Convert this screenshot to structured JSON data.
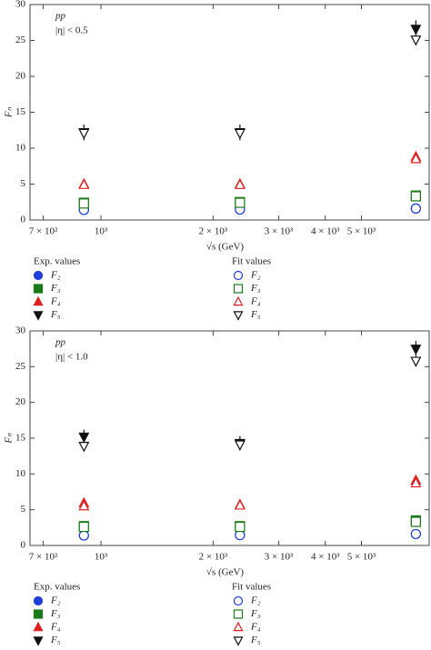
{
  "chart_data": [
    {
      "type": "scatter",
      "annotations": [
        "pp",
        "|η| < 0.5"
      ],
      "x_label": "√s (GeV)",
      "y_label": "Fₙ",
      "x": [
        900,
        2360,
        7000
      ],
      "log_x": true,
      "xlim": [
        645,
        7600
      ],
      "xticks": [
        {
          "value": 700,
          "label": "7 × 10²"
        },
        {
          "value": 1000,
          "label": "10³"
        },
        {
          "value": 2000,
          "label": "2 × 10³"
        },
        {
          "value": 3000,
          "label": "3 × 10³"
        },
        {
          "value": 4000,
          "label": "4 × 10³"
        },
        {
          "value": 5000,
          "label": "5 × 10³"
        }
      ],
      "ylim": [
        0,
        30
      ],
      "yticks": [
        0,
        5,
        10,
        15,
        20,
        25,
        30
      ],
      "legend_titles": [
        "Exp. values",
        "Fit values"
      ],
      "series": [
        {
          "name": "F₂",
          "color": "#1f3fd8",
          "marker": "circle",
          "filled": true,
          "values": [
            1.4,
            1.45,
            1.6
          ]
        },
        {
          "name": "F₃",
          "color": "#1a7a1a",
          "marker": "square",
          "filled": true,
          "values": [
            2.4,
            2.5,
            3.4
          ]
        },
        {
          "name": "F₄",
          "color": "#e02020",
          "marker": "triangle-up",
          "filled": true,
          "values": [
            5.0,
            5.0,
            8.8
          ]
        },
        {
          "name": "F₅",
          "color": "#111111",
          "marker": "triangle-down",
          "filled": true,
          "values": [
            12.2,
            12.2,
            26.6
          ],
          "errors": [
            1.1,
            1.1,
            1.2
          ]
        },
        {
          "name": "F₂",
          "color": "#1f3fd8",
          "marker": "circle",
          "filled": false,
          "values": [
            1.4,
            1.45,
            1.6
          ]
        },
        {
          "name": "F₃",
          "color": "#1a7a1a",
          "marker": "square",
          "filled": false,
          "values": [
            2.3,
            2.4,
            3.3
          ]
        },
        {
          "name": "F₄",
          "color": "#e02020",
          "marker": "triangle-up",
          "filled": false,
          "values": [
            4.9,
            4.9,
            8.5
          ]
        },
        {
          "name": "F₅",
          "color": "#111111",
          "marker": "triangle-down",
          "filled": false,
          "values": [
            12.1,
            12.1,
            25.1
          ]
        }
      ]
    },
    {
      "type": "scatter",
      "annotations": [
        "pp",
        "|η| < 1.0"
      ],
      "x_label": "√s (GeV)",
      "y_label": "Fₙ",
      "x": [
        900,
        2360,
        7000
      ],
      "log_x": true,
      "xlim": [
        645,
        7600
      ],
      "xticks": [
        {
          "value": 700,
          "label": "7 × 10²"
        },
        {
          "value": 1000,
          "label": "10³"
        },
        {
          "value": 2000,
          "label": "2 × 10³"
        },
        {
          "value": 3000,
          "label": "3 × 10³"
        },
        {
          "value": 4000,
          "label": "4 × 10³"
        },
        {
          "value": 5000,
          "label": "5 × 10³"
        }
      ],
      "ylim": [
        0,
        30
      ],
      "yticks": [
        0,
        5,
        10,
        15,
        20,
        25,
        30
      ],
      "legend_titles": [
        "Exp. values",
        "Fit values"
      ],
      "series": [
        {
          "name": "F₂",
          "color": "#1f3fd8",
          "marker": "circle",
          "filled": true,
          "values": [
            1.4,
            1.45,
            1.6
          ]
        },
        {
          "name": "F₃",
          "color": "#1a7a1a",
          "marker": "square",
          "filled": true,
          "values": [
            2.7,
            2.7,
            3.5
          ]
        },
        {
          "name": "F₄",
          "color": "#e02020",
          "marker": "triangle-up",
          "filled": true,
          "values": [
            5.9,
            5.7,
            9.1
          ]
        },
        {
          "name": "F₅",
          "color": "#111111",
          "marker": "triangle-down",
          "filled": true,
          "values": [
            15.2,
            14.3,
            27.5
          ],
          "errors": [
            1.0,
            1.0,
            1.1
          ]
        },
        {
          "name": "F₂",
          "color": "#1f3fd8",
          "marker": "circle",
          "filled": false,
          "values": [
            1.4,
            1.45,
            1.6
          ]
        },
        {
          "name": "F₃",
          "color": "#1a7a1a",
          "marker": "square",
          "filled": false,
          "values": [
            2.6,
            2.6,
            3.3
          ]
        },
        {
          "name": "F₄",
          "color": "#e02020",
          "marker": "triangle-up",
          "filled": false,
          "values": [
            5.5,
            5.6,
            8.7
          ]
        },
        {
          "name": "F₅",
          "color": "#111111",
          "marker": "triangle-down",
          "filled": false,
          "values": [
            13.9,
            14.1,
            25.8
          ]
        }
      ]
    }
  ]
}
